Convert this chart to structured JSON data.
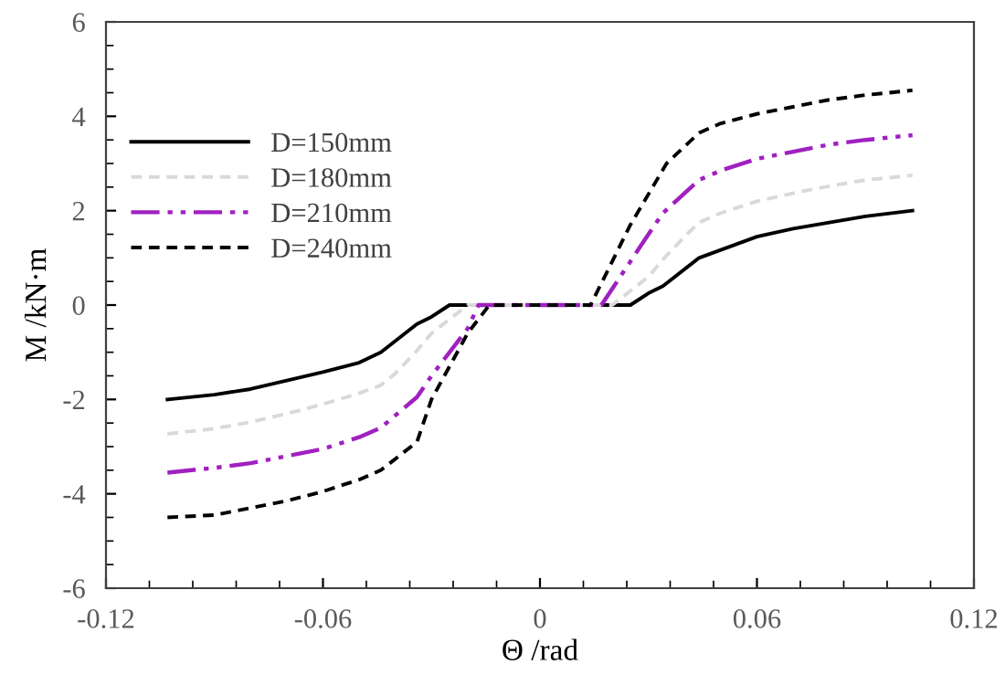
{
  "chart_data": {
    "type": "line",
    "xlabel": "Θ /rad",
    "ylabel": "M /kN·m",
    "xlim": [
      -0.12,
      0.12
    ],
    "xticks": [
      -0.12,
      -0.06,
      0,
      0.06,
      0.12
    ],
    "ylim": [
      -6,
      6
    ],
    "yticks": [
      -6,
      -4,
      -2,
      0,
      2,
      4,
      6
    ],
    "grid": false,
    "legend": "top left",
    "marker": "none",
    "series": [
      {
        "name": "D=150mm",
        "color": "#000000",
        "line_style": "solid",
        "x": [
          -0.103,
          -0.09,
          -0.08,
          -0.07,
          -0.06,
          -0.05,
          -0.044,
          -0.034,
          -0.03,
          -0.025,
          0.025,
          0.03,
          0.034,
          0.044,
          0.06,
          0.07,
          0.08,
          0.09,
          0.103
        ],
        "values": [
          -2.0,
          -1.9,
          -1.78,
          -1.6,
          -1.42,
          -1.22,
          -1.0,
          -0.4,
          -0.25,
          0,
          0,
          0.25,
          0.4,
          1.0,
          1.45,
          1.62,
          1.75,
          1.88,
          2.0
        ]
      },
      {
        "name": "D=180mm",
        "color": "#d9d9d9",
        "line_style": "dashed",
        "x": [
          -0.103,
          -0.09,
          -0.08,
          -0.07,
          -0.06,
          -0.05,
          -0.044,
          -0.04,
          -0.035,
          -0.03,
          -0.02,
          0.02,
          0.03,
          0.035,
          0.04,
          0.044,
          0.05,
          0.06,
          0.07,
          0.08,
          0.09,
          0.103
        ],
        "values": [
          -2.73,
          -2.62,
          -2.48,
          -2.3,
          -2.1,
          -1.87,
          -1.7,
          -1.45,
          -1.05,
          -0.6,
          0,
          0,
          0.6,
          1.05,
          1.45,
          1.75,
          1.95,
          2.2,
          2.37,
          2.52,
          2.65,
          2.75
        ]
      },
      {
        "name": "D=210mm",
        "color": "#a020c0",
        "line_style": "dashdotdot",
        "x": [
          -0.103,
          -0.09,
          -0.08,
          -0.07,
          -0.06,
          -0.05,
          -0.044,
          -0.034,
          -0.03,
          -0.02,
          -0.017,
          0.017,
          0.03,
          0.034,
          0.044,
          0.05,
          0.06,
          0.07,
          0.08,
          0.09,
          0.103
        ],
        "values": [
          -3.55,
          -3.45,
          -3.35,
          -3.2,
          -3.05,
          -2.8,
          -2.6,
          -1.95,
          -1.5,
          -0.5,
          0,
          0,
          1.5,
          1.95,
          2.65,
          2.85,
          3.1,
          3.25,
          3.4,
          3.5,
          3.6
        ]
      },
      {
        "name": "D=240mm",
        "color": "#000000",
        "line_style": "dashed",
        "x": [
          -0.103,
          -0.09,
          -0.08,
          -0.07,
          -0.06,
          -0.05,
          -0.044,
          -0.034,
          -0.03,
          -0.02,
          -0.014,
          0.014,
          0.025,
          0.035,
          0.044,
          0.05,
          0.06,
          0.07,
          0.08,
          0.09,
          0.103
        ],
        "values": [
          -4.5,
          -4.45,
          -4.3,
          -4.15,
          -3.95,
          -3.7,
          -3.5,
          -2.9,
          -2.0,
          -0.6,
          0,
          0,
          1.7,
          3.0,
          3.65,
          3.85,
          4.05,
          4.2,
          4.35,
          4.45,
          4.55
        ]
      }
    ]
  }
}
